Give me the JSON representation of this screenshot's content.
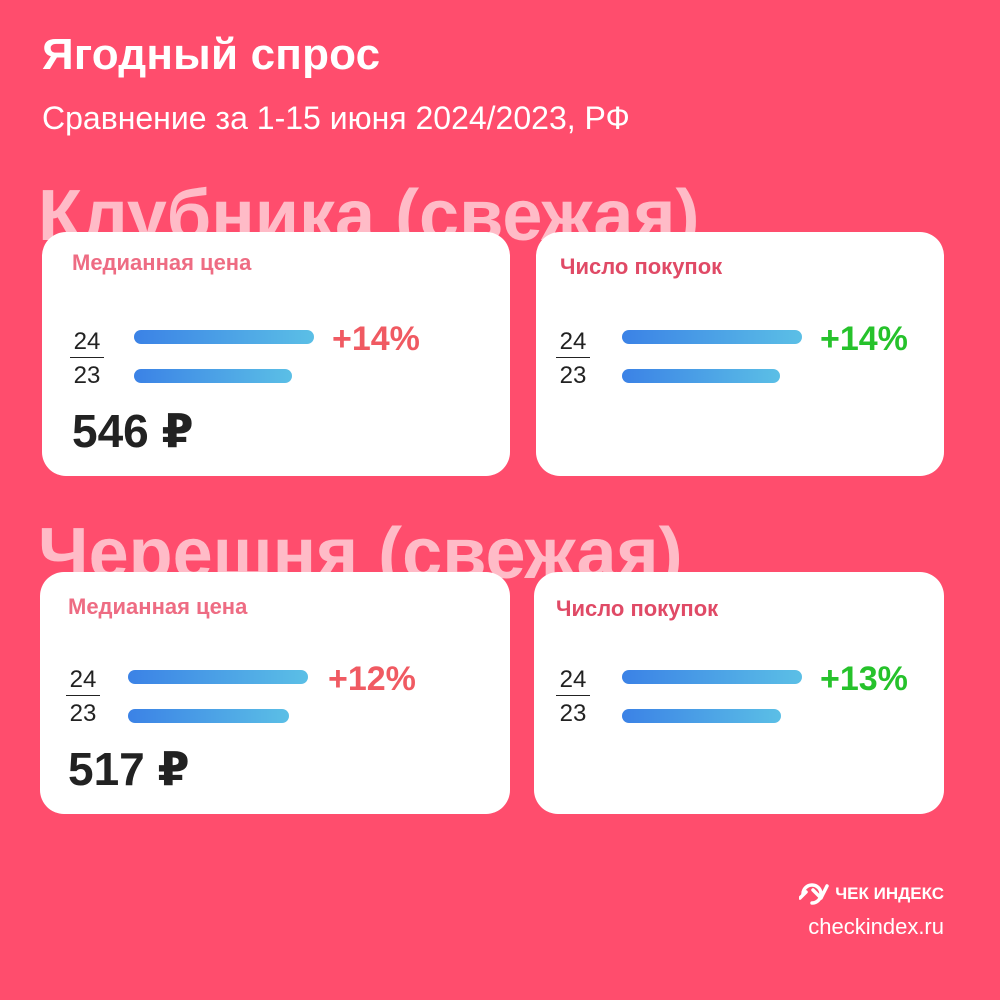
{
  "header": {
    "title": "Ягодный спрос",
    "subtitle": "Сравнение за 1-15 июня 2024/2023, РФ"
  },
  "colors": {
    "background": "#ff4d6d",
    "bar_start": "#3b82e6",
    "bar_end": "#5bbfe6",
    "price_change": "#f05a62",
    "count_change": "#26c22b"
  },
  "sections": [
    {
      "name": "Клубника (свежая)",
      "price_card": {
        "label": "Медианная цена",
        "year_2024": "24",
        "year_2023": "23",
        "change": "+14%",
        "value": "546 ₽"
      },
      "count_card": {
        "label": "Число покупок",
        "year_2024": "24",
        "year_2023": "23",
        "change": "+14%"
      }
    },
    {
      "name": "Черешня (свежая)",
      "price_card": {
        "label": "Медианная цена",
        "year_2024": "24",
        "year_2023": "23",
        "change": "+12%",
        "value": "517 ₽"
      },
      "count_card": {
        "label": "Число покупок",
        "year_2024": "24",
        "year_2023": "23",
        "change": "+13%"
      }
    }
  ],
  "chart_data": [
    {
      "type": "bar",
      "title": "Клубника (свежая) — Медианная цена",
      "categories": [
        "24",
        "23"
      ],
      "values": [
        1.14,
        1.0
      ],
      "annotation": "+14%",
      "value_label": "546 ₽"
    },
    {
      "type": "bar",
      "title": "Клубника (свежая) — Число покупок",
      "categories": [
        "24",
        "23"
      ],
      "values": [
        1.14,
        1.0
      ],
      "annotation": "+14%"
    },
    {
      "type": "bar",
      "title": "Черешня (свежая) — Медианная цена",
      "categories": [
        "24",
        "23"
      ],
      "values": [
        1.12,
        1.0
      ],
      "annotation": "+12%",
      "value_label": "517 ₽"
    },
    {
      "type": "bar",
      "title": "Черешня (свежая) — Число покупок",
      "categories": [
        "24",
        "23"
      ],
      "values": [
        1.13,
        1.0
      ],
      "annotation": "+13%"
    }
  ],
  "footer": {
    "brand_icon": "checkindex-logo-icon",
    "brand": "ЧЕК ИНДЕКС",
    "site": "checkindex.ru"
  }
}
